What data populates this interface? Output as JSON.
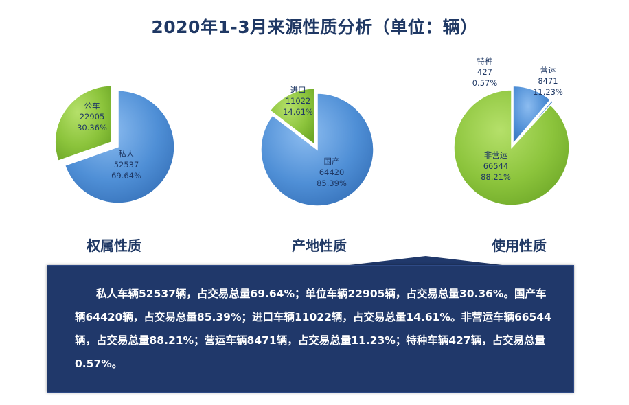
{
  "title": "2020年1-3月来源性质分析（单位：辆）",
  "colors": {
    "blue": "#4f8fd6",
    "green": "#8cc43c",
    "navy": "#1f3864",
    "box": "#20386a"
  },
  "chart_data": [
    {
      "type": "pie",
      "caption": "权属性质",
      "slices": [
        {
          "name": "私人",
          "value": 52537,
          "percent": "69.64%",
          "color": "#4f8fd6"
        },
        {
          "name": "公车",
          "value": 22905,
          "percent": "30.36%",
          "color": "#8cc43c"
        }
      ]
    },
    {
      "type": "pie",
      "caption": "产地性质",
      "slices": [
        {
          "name": "国产",
          "value": 64420,
          "percent": "85.39%",
          "color": "#4f8fd6"
        },
        {
          "name": "进口",
          "value": 11022,
          "percent": "14.61%",
          "color": "#8cc43c"
        }
      ]
    },
    {
      "type": "pie",
      "caption": "使用性质",
      "slices": [
        {
          "name": "营运",
          "value": 8471,
          "percent": "11.23%",
          "color": "#4f8fd6"
        },
        {
          "name": "特种",
          "value": 427,
          "percent": "0.57%",
          "color": "#4f8fd6"
        },
        {
          "name": "非营运",
          "value": 66544,
          "percent": "88.21%",
          "color": "#8cc43c"
        }
      ]
    }
  ],
  "summary": "私人车辆52537辆，占交易总量69.64%；单位车辆22905辆，占交易总量30.36%。国产车辆64420辆，占交易总量85.39%；进口车辆11022辆，占交易总量14.61%。非营运车辆66544辆，占交易总量88.21%；营运车辆8471辆，占交易总量11.23%；特种车辆427辆，占交易总量0.57%。"
}
